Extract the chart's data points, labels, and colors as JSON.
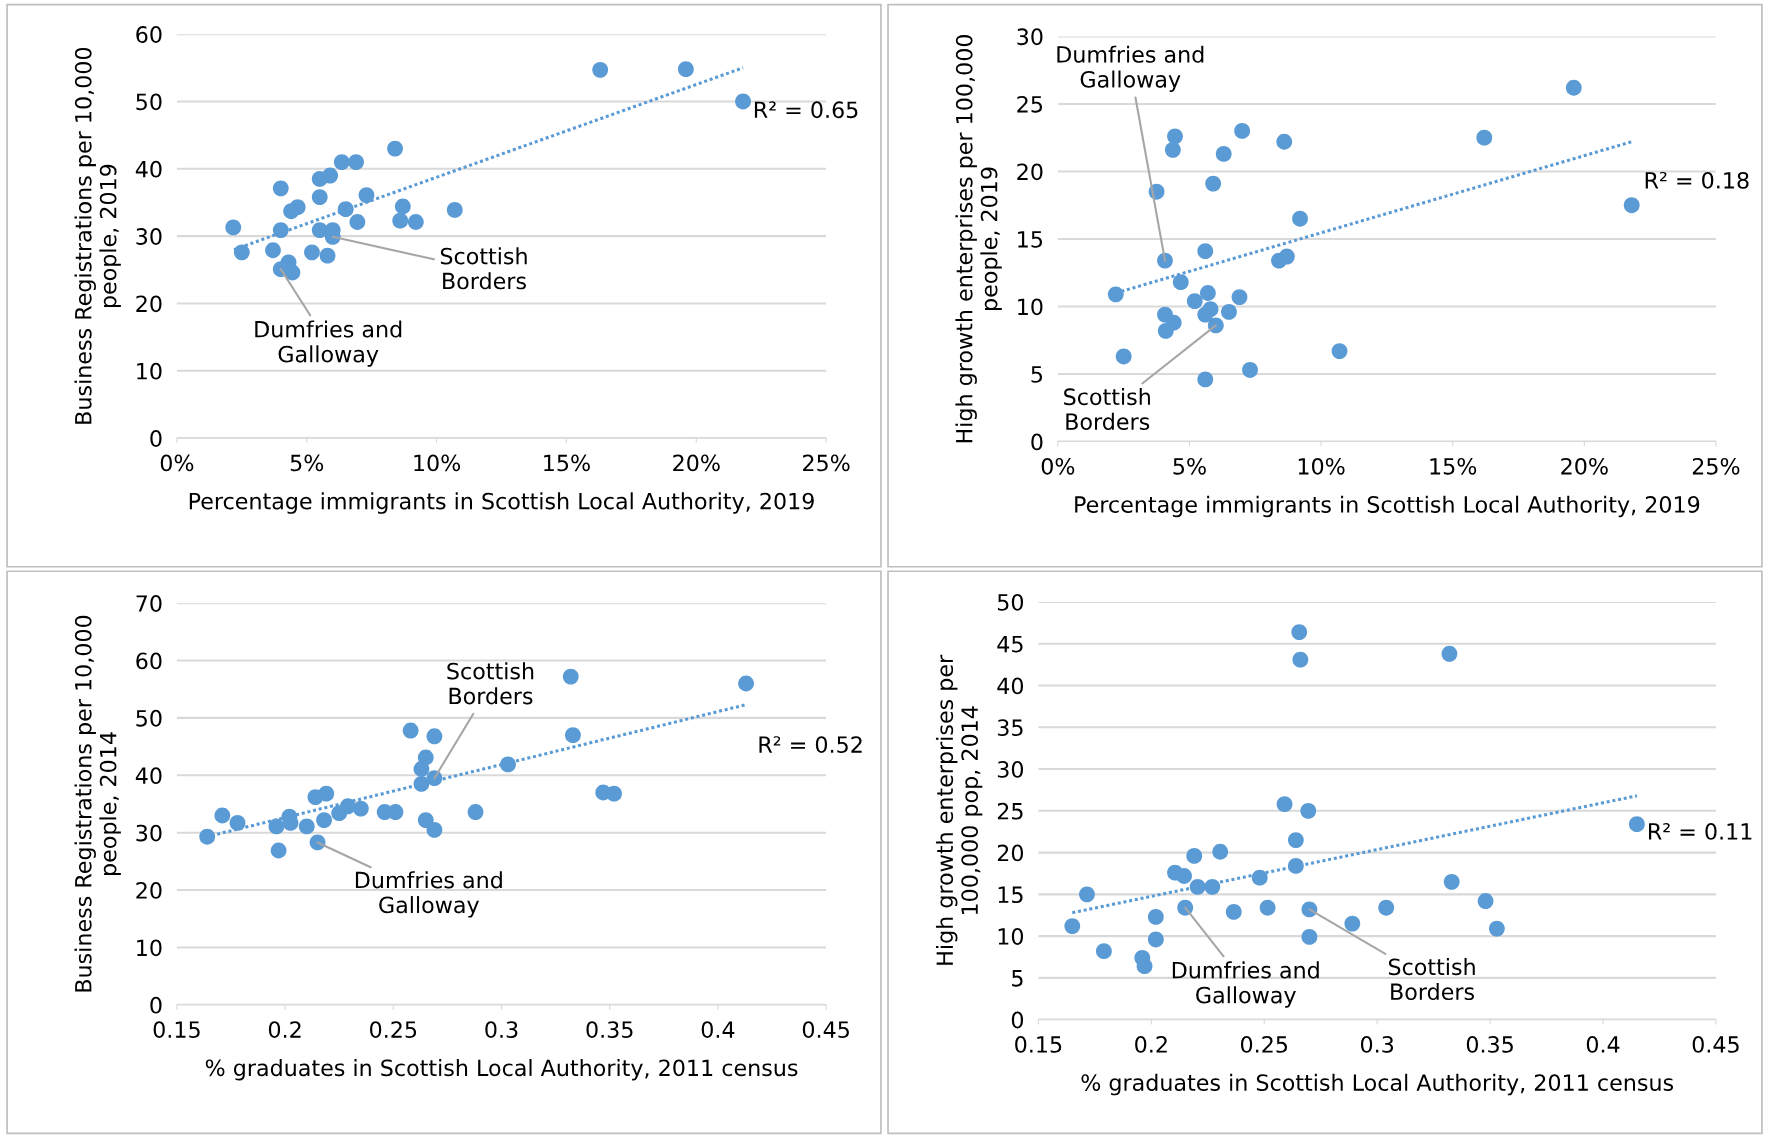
{
  "chart_data": [
    {
      "type": "scatter",
      "xlabel": "Percentage immigrants in Scottish Local Authority, 2019",
      "ylabel": "Business Registrations per 10,000\npeople, 2019",
      "xlim": [
        0,
        25
      ],
      "xticks": [
        {
          "value": 0,
          "label": "0%"
        },
        {
          "value": 5,
          "label": "5%"
        },
        {
          "value": 10,
          "label": "10%"
        },
        {
          "value": 15,
          "label": "15%"
        },
        {
          "value": 20,
          "label": "20%"
        },
        {
          "value": 25,
          "label": "25%"
        }
      ],
      "ylim": [
        0,
        60
      ],
      "yticks": [
        0,
        10,
        20,
        30,
        40,
        50,
        60
      ],
      "grid": "y",
      "legend": false,
      "series": [
        {
          "marker": "circle",
          "color": "#5b9bd5",
          "x": [
            2.17,
            2.5,
            4.0,
            3.7,
            4.0,
            4.0,
            4.3,
            4.45,
            4.4,
            4.65,
            5.5,
            5.5,
            5.5,
            5.9,
            6.0,
            6.0,
            5.8,
            5.2,
            6.35,
            6.5,
            6.9,
            6.95,
            7.3,
            8.4,
            8.7,
            8.6,
            9.2,
            10.7,
            16.3,
            19.6,
            21.8
          ],
          "values": [
            31.3,
            27.6,
            37.1,
            27.9,
            30.9,
            25.1,
            26.1,
            24.6,
            33.7,
            34.3,
            38.5,
            35.8,
            30.9,
            39.0,
            30.9,
            29.9,
            27.1,
            27.6,
            41.0,
            34.0,
            41.0,
            32.1,
            36.1,
            43.0,
            34.4,
            32.3,
            32.1,
            33.9,
            54.7,
            54.8,
            50.0
          ]
        },
        {
          "type": "line",
          "line_style": "dotted",
          "marker": "none",
          "color": "#5b9bd5",
          "x": [
            2.2,
            21.8
          ],
          "values": [
            28,
            55
          ]
        }
      ],
      "annotations": [
        {
          "text": "Dumfries and\nGalloway",
          "x": 4.0,
          "y": 25.1
        },
        {
          "text": "Scottish\nBorders",
          "x": 6.0,
          "y": 29.9
        },
        "R² = 0.65"
      ]
    },
    {
      "type": "scatter",
      "xlabel": "Percentage immigrants in Scottish Local Authority, 2019",
      "ylabel": "High growth enterprises per 100,000\npeople, 2019",
      "xlim": [
        0,
        25
      ],
      "xticks": [
        {
          "value": 0,
          "label": "0%"
        },
        {
          "value": 5,
          "label": "5%"
        },
        {
          "value": 10,
          "label": "10%"
        },
        {
          "value": 15,
          "label": "15%"
        },
        {
          "value": 20,
          "label": "20%"
        },
        {
          "value": 25,
          "label": "25%"
        }
      ],
      "ylim": [
        0,
        30
      ],
      "yticks": [
        0,
        5,
        10,
        15,
        20,
        25,
        30
      ],
      "grid": "y",
      "legend": false,
      "series": [
        {
          "marker": "circle",
          "color": "#5b9bd5",
          "x": [
            2.2,
            2.5,
            3.75,
            4.07,
            4.45,
            4.37,
            4.07,
            4.1,
            4.4,
            4.67,
            5.2,
            5.6,
            5.6,
            5.7,
            5.6,
            5.8,
            5.9,
            6.0,
            6.3,
            6.5,
            7.0,
            6.9,
            7.3,
            8.6,
            8.4,
            8.7,
            9.2,
            10.7,
            16.2,
            19.6,
            21.8
          ],
          "values": [
            10.9,
            6.3,
            18.5,
            13.4,
            22.6,
            21.6,
            9.4,
            8.2,
            8.8,
            11.8,
            10.4,
            14.1,
            4.6,
            11.0,
            9.4,
            9.8,
            19.1,
            8.6,
            21.3,
            9.6,
            23.0,
            10.7,
            5.3,
            22.2,
            13.4,
            13.7,
            16.5,
            6.7,
            22.5,
            26.2,
            17.5
          ]
        },
        {
          "type": "line",
          "line_style": "dotted",
          "marker": "none",
          "color": "#5b9bd5",
          "x": [
            2.2,
            21.8
          ],
          "values": [
            11,
            22.2
          ]
        }
      ],
      "annotations": [
        {
          "text": "Dumfries and\nGalloway",
          "x": 4.07,
          "y": 13.4
        },
        {
          "text": "Scottish\nBorders",
          "x": 6.0,
          "y": 8.6
        },
        "R² = 0.18"
      ]
    },
    {
      "type": "scatter",
      "xlabel": "% graduates in Scottish Local Authority, 2011 census",
      "ylabel": "Business Registrations per 10,000\npeople, 2014",
      "xlim": [
        0.15,
        0.45
      ],
      "xticks": [
        0.15,
        0.2,
        0.25,
        0.3,
        0.35,
        0.4,
        0.45
      ],
      "ylim": [
        0,
        70
      ],
      "yticks": [
        0,
        10,
        20,
        30,
        40,
        50,
        60,
        70
      ],
      "grid": "y",
      "legend": false,
      "series": [
        {
          "marker": "circle",
          "color": "#5b9bd5",
          "x": [
            0.164,
            0.171,
            0.178,
            0.196,
            0.197,
            0.202,
            0.2025,
            0.21,
            0.214,
            0.215,
            0.219,
            0.218,
            0.225,
            0.229,
            0.235,
            0.246,
            0.251,
            0.258,
            0.263,
            0.265,
            0.263,
            0.265,
            0.269,
            0.269,
            0.269,
            0.288,
            0.303,
            0.332,
            0.333,
            0.347,
            0.352,
            0.413
          ],
          "values": [
            29.3,
            33.0,
            31.7,
            31.1,
            26.9,
            32.8,
            31.7,
            31.1,
            36.2,
            28.3,
            36.8,
            32.2,
            33.4,
            34.6,
            34.2,
            33.6,
            33.6,
            47.8,
            41.1,
            43.1,
            38.5,
            32.2,
            46.8,
            39.5,
            30.5,
            33.6,
            41.9,
            57.2,
            47.0,
            37.0,
            36.8,
            56.0
          ]
        },
        {
          "type": "line",
          "line_style": "dotted",
          "marker": "none",
          "color": "#5b9bd5",
          "x": [
            0.166,
            0.413
          ],
          "values": [
            29.5,
            52.3
          ]
        }
      ],
      "annotations": [
        {
          "text": "Scottish\nBorders",
          "x": 0.269,
          "y": 39.5
        },
        {
          "text": "Dumfries and\nGalloway",
          "x": 0.215,
          "y": 28.3
        },
        "R² = 0.52"
      ]
    },
    {
      "type": "scatter",
      "xlabel": "% graduates in Scottish Local Authority, 2011 census",
      "ylabel": "High growth enterprises per\n100,000 pop, 2014",
      "xlim": [
        0.15,
        0.45
      ],
      "xticks": [
        0.15,
        0.2,
        0.25,
        0.3,
        0.35,
        0.4,
        0.45
      ],
      "ylim": [
        0,
        50
      ],
      "yticks": [
        0,
        5,
        10,
        15,
        20,
        25,
        30,
        35,
        40,
        45,
        50
      ],
      "grid": "y",
      "legend": false,
      "series": [
        {
          "marker": "circle",
          "color": "#5b9bd5",
          "x": [
            0.165,
            0.1715,
            0.179,
            0.196,
            0.197,
            0.202,
            0.202,
            0.2105,
            0.2145,
            0.215,
            0.219,
            0.2205,
            0.227,
            0.2305,
            0.2365,
            0.248,
            0.2515,
            0.259,
            0.264,
            0.264,
            0.2655,
            0.266,
            0.2695,
            0.27,
            0.27,
            0.289,
            0.304,
            0.332,
            0.333,
            0.348,
            0.353,
            0.415
          ],
          "values": [
            11.2,
            15.0,
            8.2,
            7.4,
            6.4,
            12.3,
            9.6,
            17.6,
            17.2,
            13.4,
            19.6,
            15.9,
            15.9,
            20.1,
            12.9,
            17.0,
            13.4,
            25.8,
            21.5,
            18.4,
            46.4,
            43.1,
            25.0,
            13.2,
            9.9,
            11.5,
            13.4,
            43.8,
            16.5,
            14.2,
            10.9,
            23.4
          ]
        },
        {
          "type": "line",
          "line_style": "dotted",
          "marker": "none",
          "color": "#5b9bd5",
          "x": [
            0.165,
            0.415
          ],
          "values": [
            12.8,
            26.8
          ]
        }
      ],
      "annotations": [
        {
          "text": "Dumfries and\nGalloway",
          "x": 0.215,
          "y": 13.4
        },
        {
          "text": "Scottish\nBorders",
          "x": 0.27,
          "y": 13.2
        },
        "R² = 0.11"
      ]
    }
  ]
}
